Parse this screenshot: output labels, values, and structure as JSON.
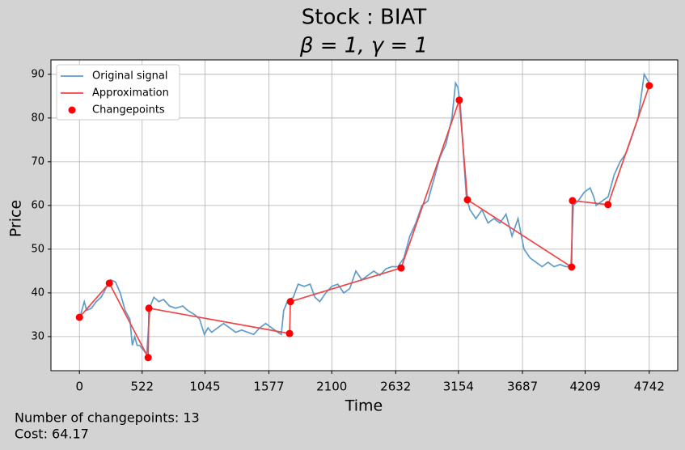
{
  "chart_data": {
    "type": "line",
    "title": "Stock : BIAT",
    "subtitle": "β = 1, γ = 1",
    "xlabel": "Time",
    "ylabel": "Price",
    "annotations": [
      "Number of changepoints: 13",
      "Cost: 64.17"
    ],
    "xlim": [
      -237,
      4979
    ],
    "ylim": [
      22.2,
      93.3
    ],
    "xticks": [
      0,
      522,
      1045,
      1577,
      2100,
      2632,
      3154,
      3687,
      4209,
      4742
    ],
    "yticks": [
      30,
      40,
      50,
      60,
      70,
      80,
      90
    ],
    "grid": true,
    "legend": "upper left",
    "series": [
      {
        "name": "Original signal",
        "kind": "line",
        "color": "#5e9ccb",
        "x": [
          0,
          20,
          40,
          60,
          100,
          140,
          180,
          220,
          260,
          300,
          340,
          380,
          420,
          440,
          460,
          480,
          500,
          530,
          560,
          575,
          590,
          620,
          660,
          700,
          750,
          800,
          860,
          900,
          960,
          1000,
          1040,
          1070,
          1100,
          1150,
          1200,
          1250,
          1300,
          1350,
          1400,
          1450,
          1500,
          1550,
          1600,
          1650,
          1680,
          1700,
          1730,
          1780,
          1820,
          1870,
          1920,
          1960,
          2000,
          2050,
          2100,
          2150,
          2200,
          2250,
          2300,
          2350,
          2400,
          2450,
          2500,
          2550,
          2600,
          2650,
          2700,
          2750,
          2800,
          2850,
          2900,
          2950,
          3000,
          3050,
          3100,
          3130,
          3150,
          3170,
          3200,
          3220,
          3250,
          3300,
          3350,
          3400,
          3450,
          3500,
          3550,
          3600,
          3650,
          3700,
          3750,
          3800,
          3850,
          3900,
          3950,
          4000,
          4050,
          4090,
          4110,
          4150,
          4200,
          4250,
          4280,
          4300,
          4350,
          4400,
          4450,
          4500,
          4550,
          4600,
          4650,
          4680,
          4700,
          4742
        ],
        "values": [
          34,
          36,
          38,
          36,
          36.5,
          38,
          39,
          41,
          43,
          42.5,
          40,
          36,
          34,
          28,
          30,
          28,
          28,
          27,
          26,
          32,
          37,
          39,
          38,
          38.5,
          37,
          36.5,
          37,
          36,
          35,
          34,
          30.5,
          32,
          31,
          32,
          33,
          32,
          31,
          31.5,
          31,
          30.5,
          32,
          33,
          32,
          31,
          30.5,
          36,
          38,
          39,
          42,
          41.5,
          42,
          39,
          38,
          40,
          41.5,
          42,
          40,
          41,
          45,
          43,
          44,
          45,
          44,
          45.5,
          46,
          46,
          48,
          53,
          56,
          60,
          61,
          66,
          71,
          74,
          80,
          88,
          87,
          83,
          70,
          62,
          59,
          57,
          59,
          56,
          57,
          56,
          58,
          53,
          57,
          50,
          48,
          47,
          46,
          47,
          46,
          46.5,
          46,
          46,
          60,
          61,
          63,
          64,
          62,
          60,
          61,
          62,
          67,
          70,
          72,
          76,
          80,
          86,
          90,
          88
        ]
      },
      {
        "name": "Approximation",
        "kind": "line",
        "color": "#ee4545",
        "x": [
          0,
          249,
          572,
          578,
          1749,
          1756,
          2677,
          3161,
          3229,
          4096,
          4103,
          4399,
          4742
        ],
        "values": [
          34.4,
          42.2,
          25.2,
          36.5,
          30.7,
          38,
          45.7,
          84.1,
          61.3,
          45.9,
          61.1,
          60.2,
          87.4
        ]
      },
      {
        "name": "Changepoints",
        "kind": "scatter",
        "color": "#ff0000",
        "x": [
          0,
          249,
          572,
          578,
          1749,
          1756,
          2677,
          3161,
          3229,
          4096,
          4103,
          4399,
          4742
        ],
        "values": [
          34.4,
          42.2,
          25.2,
          36.5,
          30.7,
          38,
          45.7,
          84.1,
          61.3,
          45.9,
          61.1,
          60.2,
          87.4
        ]
      }
    ]
  }
}
